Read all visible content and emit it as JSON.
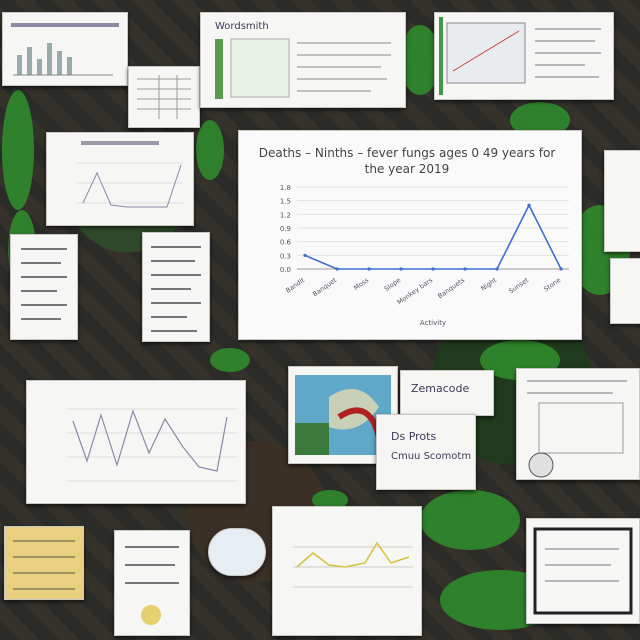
{
  "main_chart": {
    "title_line1": "Deaths – Ninths – fever fungs ages 0 49 years for",
    "title_line2": "the year 2019",
    "chart_data": {
      "type": "line",
      "categories": [
        "Bandit",
        "Banquet",
        "Moss",
        "Slope",
        "Monkey bars",
        "Banquets",
        "Night",
        "Sunset",
        "Stone"
      ],
      "series": [
        {
          "values": [
            0.3,
            0.0,
            0.0,
            0.0,
            0.0,
            0.0,
            0.0,
            1.4,
            0.0
          ]
        }
      ],
      "ylim": [
        0,
        1.8
      ],
      "yticks": [
        "0.0",
        "0.3",
        "0.6",
        "0.9",
        "1.2",
        "1.5",
        "1.8"
      ],
      "xlabel": "Activity",
      "line_color": "#3f6fd0"
    }
  },
  "small_card_texts": {
    "top_center": "Wordsmith",
    "mid_right": "Zemacode",
    "lower_right_1": "Ds Prots",
    "lower_right_2": "Cmuu Scomotm"
  },
  "colors": {
    "accent": "#3f6fd0",
    "leaf": "#2f8a2c"
  }
}
